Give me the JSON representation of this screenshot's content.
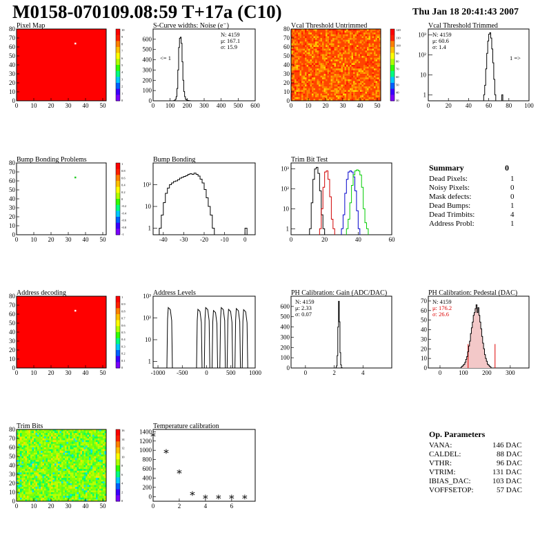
{
  "header": {
    "title": "M0158-070109.08:59 T+17a (C10)",
    "date": "Thu Jan 18 20:41:43 2007"
  },
  "colors": {
    "map_red": "#ff0000",
    "frame": "#000000",
    "trim_red": "#d00000",
    "trim_blue": "#0000cc",
    "trim_green": "#00cc00",
    "pedestal_red": "#dd0000"
  },
  "summary": {
    "title": "Summary",
    "title_value": "0",
    "rows": [
      {
        "label": "Dead Pixels:",
        "value": "1"
      },
      {
        "label": "Noisy Pixels:",
        "value": "0"
      },
      {
        "label": "Mask defects:",
        "value": "0"
      },
      {
        "label": "Dead Bumps:",
        "value": "1"
      },
      {
        "label": "Dead Trimbits:",
        "value": "4"
      },
      {
        "label": "Address Probl:",
        "value": "1"
      }
    ]
  },
  "op_params": {
    "title": "Op. Parameters",
    "rows": [
      {
        "label": "VANA:",
        "value": "146 DAC"
      },
      {
        "label": "CALDEL:",
        "value": "88 DAC"
      },
      {
        "label": "VTHR:",
        "value": "96 DAC"
      },
      {
        "label": "VTRIM:",
        "value": "131 DAC"
      },
      {
        "label": "IBIAS_DAC:",
        "value": "103 DAC"
      },
      {
        "label": "VOFFSETOP:",
        "value": "57 DAC"
      }
    ]
  },
  "chart_data": [
    {
      "id": "pixelmap",
      "type": "heatmap",
      "title": "Pixel Map",
      "xlim": [
        0,
        52
      ],
      "ylim": [
        0,
        80
      ],
      "xticks": [
        0,
        10,
        20,
        30,
        40,
        50
      ],
      "yticks": [
        0,
        10,
        20,
        30,
        40,
        50,
        60,
        70,
        80
      ],
      "fill": "uniform-red",
      "special_pixels": [
        {
          "x": 34,
          "y": 64,
          "color": "#ffffff"
        }
      ],
      "palette_ticks": [
        "10",
        "9",
        "8",
        "7",
        "6",
        "5",
        "4",
        "3",
        "2",
        "1",
        "0"
      ]
    },
    {
      "id": "scurve",
      "type": "histogram",
      "title": "S-Curve widths: Noise (e⁻)",
      "xlim": [
        0,
        600
      ],
      "ylim": [
        0,
        700
      ],
      "xticks": [
        0,
        100,
        200,
        300,
        400,
        500,
        600
      ],
      "yticks": [
        0,
        100,
        200,
        300,
        400,
        500,
        600
      ],
      "stats": [
        "N: 4159",
        "μ: 167.1",
        "σ: 15.9"
      ],
      "annotation": "<= 1",
      "bins_start": 120,
      "bin_width": 5,
      "values": [
        2,
        5,
        15,
        40,
        120,
        300,
        520,
        610,
        620,
        560,
        380,
        200,
        90,
        40,
        15,
        8,
        5,
        3,
        2,
        1
      ]
    },
    {
      "id": "vcalun",
      "type": "heatmap",
      "title": "Vcal Threshold Untrimmed",
      "xlim": [
        0,
        52
      ],
      "ylim": [
        0,
        80
      ],
      "xticks": [
        0,
        10,
        20,
        30,
        40,
        50
      ],
      "yticks": [
        0,
        10,
        20,
        30,
        40,
        50,
        60,
        70,
        80
      ],
      "fill": "noisy-red-orange",
      "palette_ticks": [
        "120",
        "110",
        "100",
        "90",
        "80",
        "70",
        "60",
        "50",
        "40",
        "30"
      ]
    },
    {
      "id": "vcaltr",
      "type": "histogram",
      "log_y": true,
      "title": "Vcal Threshold Trimmed",
      "xlim": [
        0,
        100
      ],
      "ylim_log": [
        0.5,
        2000
      ],
      "xticks": [
        0,
        20,
        40,
        60,
        80,
        100
      ],
      "yticks_log": [
        "1",
        "10",
        "10²",
        "10³"
      ],
      "stats": [
        "N: 4159",
        "μ: 60.6",
        "σ: 1.4"
      ],
      "annotation": "1 =>",
      "bins_start": 55,
      "bin_width": 1,
      "values": [
        1,
        3,
        20,
        120,
        500,
        1100,
        1300,
        700,
        200,
        40,
        6,
        1
      ],
      "extra": [
        {
          "x": 73,
          "value": 1
        }
      ]
    },
    {
      "id": "bumpprob",
      "type": "heatmap",
      "title": "Bump Bonding Problems",
      "xlim": [
        0,
        52
      ],
      "ylim": [
        0,
        80
      ],
      "xticks": [
        0,
        10,
        20,
        30,
        40,
        50
      ],
      "yticks": [
        0,
        10,
        20,
        30,
        40,
        50,
        60,
        70,
        80
      ],
      "fill": "white",
      "special_pixels": [
        {
          "x": 34,
          "y": 64,
          "color": "#22cc22"
        }
      ],
      "palette_ticks": [
        "1",
        "0.8",
        "0.6",
        "0.4",
        "0.2",
        "0",
        "-0.2",
        "-0.4",
        "-0.6",
        "-0.8",
        "-1"
      ]
    },
    {
      "id": "bumpbond",
      "type": "histogram",
      "log_y": true,
      "title": "Bump Bonding",
      "xlim": [
        -45,
        5
      ],
      "ylim_log": [
        0.5,
        1000
      ],
      "xticks": [
        -40,
        -30,
        -20,
        -10,
        0
      ],
      "yticks_log": [
        "1",
        "10",
        "10²"
      ],
      "bins_start": -42,
      "bin_width": 1,
      "values": [
        1,
        4,
        15,
        40,
        70,
        100,
        120,
        140,
        150,
        170,
        200,
        220,
        240,
        260,
        300,
        320,
        300,
        340,
        300,
        250,
        180,
        120,
        60,
        25,
        10,
        4,
        1
      ],
      "extra": [
        {
          "x": 0,
          "value": 1
        }
      ]
    },
    {
      "id": "trimbit",
      "type": "line",
      "log_y": true,
      "title": "Trim Bit Test",
      "xlim": [
        0,
        60
      ],
      "ylim_log": [
        0.5,
        2000
      ],
      "xticks": [
        0,
        20,
        40,
        60
      ],
      "yticks_log": [
        "1",
        "10",
        "10²",
        "10³"
      ],
      "series": [
        {
          "color": "#000000",
          "x_start": 11,
          "values": [
            1,
            20,
            300,
            1000,
            1200,
            600,
            80,
            5,
            1
          ]
        },
        {
          "color": "#d00000",
          "x_start": 17,
          "values": [
            1,
            10,
            120,
            700,
            800,
            300,
            40,
            3,
            1
          ]
        },
        {
          "color": "#0000cc",
          "x_start": 30,
          "values": [
            1,
            5,
            60,
            300,
            700,
            800,
            700,
            400,
            80,
            8,
            1
          ]
        },
        {
          "color": "#00cc00",
          "x_start": 33,
          "values": [
            1,
            3,
            20,
            150,
            500,
            800,
            900,
            800,
            500,
            120,
            10,
            2,
            1
          ]
        }
      ]
    },
    {
      "id": "addrdec",
      "type": "heatmap",
      "title": "Address decoding",
      "xlim": [
        0,
        52
      ],
      "ylim": [
        0,
        80
      ],
      "xticks": [
        0,
        10,
        20,
        30,
        40,
        50
      ],
      "yticks": [
        0,
        10,
        20,
        30,
        40,
        50,
        60,
        70,
        80
      ],
      "fill": "uniform-red",
      "special_pixels": [
        {
          "x": 34,
          "y": 64,
          "color": "#ffffff"
        }
      ],
      "palette_ticks": [
        "1",
        "0.9",
        "0.8",
        "0.7",
        "0.6",
        "0.5",
        "0.4",
        "0.3",
        "0.2",
        "0.1",
        "0"
      ]
    },
    {
      "id": "addrlev",
      "type": "histogram",
      "log_y": true,
      "title": "Address Levels",
      "xlim": [
        -1100,
        1000
      ],
      "ylim_log": [
        0.5,
        1000
      ],
      "xticks": [
        -1000,
        -500,
        0,
        500,
        1000
      ],
      "yticks_log": [
        "1",
        "10",
        "10²",
        "10³"
      ],
      "peaks": [
        {
          "x": -760,
          "height": 300
        },
        {
          "x": -150,
          "height": 250
        },
        {
          "x": 10,
          "height": 300
        },
        {
          "x": 170,
          "height": 220
        },
        {
          "x": 330,
          "height": 300
        },
        {
          "x": 480,
          "height": 250
        },
        {
          "x": 640,
          "height": 270
        },
        {
          "x": 790,
          "height": 240
        }
      ]
    },
    {
      "id": "phgain",
      "type": "histogram",
      "title": "PH Calibration: Gain (ADC/DAC)",
      "xlim": [
        -1,
        6
      ],
      "ylim": [
        0,
        700
      ],
      "xticks": [
        0,
        2,
        4
      ],
      "yticks": [
        0,
        100,
        200,
        300,
        400,
        500,
        600
      ],
      "stats": [
        "N: 4159",
        "μ: 2.33",
        "σ: 0.07"
      ],
      "bins_start": 2.1,
      "bin_width": 0.05,
      "values": [
        2,
        20,
        120,
        400,
        650,
        450,
        150,
        30,
        3
      ]
    },
    {
      "id": "phped",
      "type": "histogram",
      "title": "PH Calibration: Pedestal (DAC)",
      "xlim": [
        -50,
        380
      ],
      "ylim": [
        0,
        75
      ],
      "xticks": [
        0,
        100,
        200,
        300
      ],
      "yticks": [
        0,
        10,
        20,
        30,
        40,
        50,
        60,
        70
      ],
      "stats": [
        "N: 4159",
        "μ: 176.2",
        "σ: 26.6"
      ],
      "bins_start": 90,
      "bin_width": 4,
      "values": [
        1,
        2,
        3,
        4,
        6,
        9,
        12,
        17,
        23,
        28,
        36,
        42,
        48,
        55,
        58,
        62,
        66,
        58,
        63,
        55,
        48,
        41,
        33,
        26,
        20,
        14,
        10,
        7,
        4,
        3,
        2,
        1
      ],
      "fit_band": [
        120,
        235
      ]
    },
    {
      "id": "trimbits",
      "type": "heatmap",
      "title": "Trim Bits",
      "xlim": [
        0,
        52
      ],
      "ylim": [
        0,
        80
      ],
      "xticks": [
        0,
        10,
        20,
        30,
        40,
        50
      ],
      "yticks": [
        0,
        10,
        20,
        30,
        40,
        50,
        60,
        70,
        80
      ],
      "fill": "noisy-green",
      "palette_ticks": [
        "16",
        "14",
        "12",
        "10",
        "8",
        "6",
        "4",
        "2",
        "0"
      ]
    },
    {
      "id": "tempcal",
      "type": "scatter",
      "title": "Temperature calibration",
      "xlim": [
        0,
        7.8
      ],
      "ylim": [
        -100,
        1450
      ],
      "xticks": [
        0,
        2,
        4,
        6
      ],
      "yticks": [
        0,
        200,
        400,
        600,
        800,
        1000,
        1200,
        1400
      ],
      "points": [
        {
          "x": 0,
          "y": 1340
        },
        {
          "x": 1,
          "y": 980
        },
        {
          "x": 2,
          "y": 540
        },
        {
          "x": 3,
          "y": 70
        },
        {
          "x": 4,
          "y": 0
        },
        {
          "x": 5,
          "y": 0
        },
        {
          "x": 6,
          "y": 0
        },
        {
          "x": 7,
          "y": 0
        }
      ]
    }
  ]
}
